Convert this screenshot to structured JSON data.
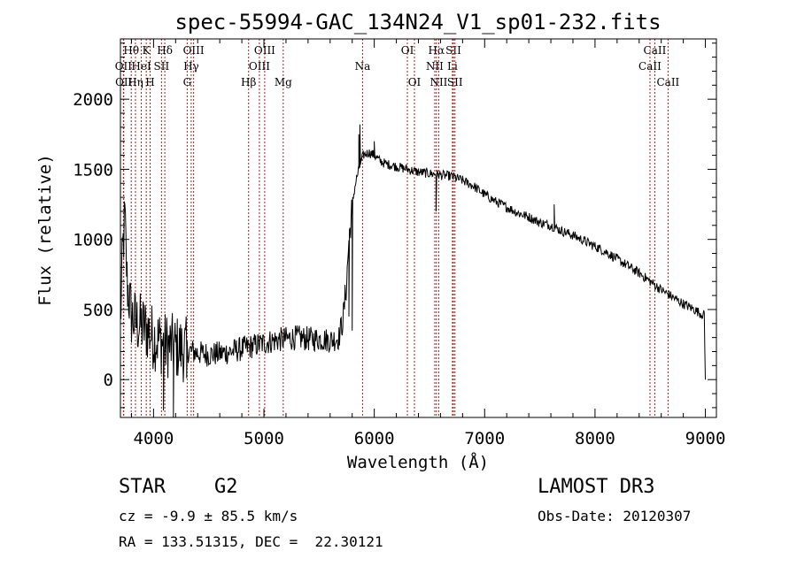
{
  "chart_data": {
    "type": "line",
    "title": "spec-55994-GAC_134N24_V1_sp01-232.fits",
    "xlabel": "Wavelength (Å)",
    "ylabel": "Flux (relative)",
    "xlim": [
      3700,
      9100
    ],
    "ylim": [
      -270,
      2430
    ],
    "xticks": [
      4000,
      5000,
      6000,
      7000,
      8000,
      9000
    ],
    "yticks": [
      0,
      500,
      1000,
      1500,
      2000
    ],
    "spectrum_anchors": [
      [
        3700,
        400
      ],
      [
        3720,
        900
      ],
      [
        3740,
        1150
      ],
      [
        3760,
        700
      ],
      [
        3800,
        450
      ],
      [
        3850,
        400
      ],
      [
        3900,
        380
      ],
      [
        3950,
        350
      ],
      [
        4000,
        300
      ],
      [
        4050,
        280
      ],
      [
        4100,
        250
      ],
      [
        4150,
        240
      ],
      [
        4200,
        230
      ],
      [
        4300,
        210
      ],
      [
        4400,
        190
      ],
      [
        4500,
        180
      ],
      [
        4600,
        185
      ],
      [
        4700,
        200
      ],
      [
        4800,
        220
      ],
      [
        4900,
        240
      ],
      [
        5000,
        260
      ],
      [
        5100,
        280
      ],
      [
        5200,
        290
      ],
      [
        5300,
        300
      ],
      [
        5400,
        290
      ],
      [
        5500,
        290
      ],
      [
        5600,
        280
      ],
      [
        5680,
        300
      ],
      [
        5720,
        450
      ],
      [
        5750,
        700
      ],
      [
        5770,
        1000
      ],
      [
        5790,
        1150
      ],
      [
        5800,
        1250
      ],
      [
        5830,
        1400
      ],
      [
        5860,
        1500
      ],
      [
        5900,
        1600
      ],
      [
        5950,
        1620
      ],
      [
        6000,
        1600
      ],
      [
        6050,
        1560
      ],
      [
        6100,
        1540
      ],
      [
        6200,
        1520
      ],
      [
        6300,
        1500
      ],
      [
        6400,
        1480
      ],
      [
        6500,
        1470
      ],
      [
        6600,
        1460
      ],
      [
        6700,
        1450
      ],
      [
        6800,
        1420
      ],
      [
        6900,
        1380
      ],
      [
        7000,
        1320
      ],
      [
        7100,
        1270
      ],
      [
        7200,
        1230
      ],
      [
        7300,
        1190
      ],
      [
        7400,
        1160
      ],
      [
        7500,
        1120
      ],
      [
        7600,
        1100
      ],
      [
        7700,
        1060
      ],
      [
        7800,
        1030
      ],
      [
        7900,
        990
      ],
      [
        8000,
        950
      ],
      [
        8100,
        910
      ],
      [
        8200,
        860
      ],
      [
        8300,
        810
      ],
      [
        8400,
        760
      ],
      [
        8500,
        700
      ],
      [
        8600,
        640
      ],
      [
        8700,
        590
      ],
      [
        8800,
        540
      ],
      [
        8900,
        500
      ],
      [
        8960,
        470
      ],
      [
        8990,
        460
      ],
      [
        9000,
        0
      ]
    ],
    "spectrum_features": [
      [
        5860,
        1750
      ],
      [
        5870,
        1820
      ],
      [
        6000,
        1700
      ],
      [
        6560,
        1200
      ],
      [
        7630,
        1250
      ],
      [
        5770,
        450
      ],
      [
        5800,
        350
      ],
      [
        4180,
        -270
      ],
      [
        4090,
        -220
      ],
      [
        4300,
        10
      ]
    ],
    "spectral_lines": [
      {
        "label": "Hθ",
        "wavelength": 3798,
        "row": 1
      },
      {
        "label": "OII",
        "wavelength": 3727,
        "row": 2
      },
      {
        "label": "OII",
        "wavelength": 3730,
        "row": 3
      },
      {
        "label": "Hη",
        "wavelength": 3836,
        "row": 3
      },
      {
        "label": "K",
        "wavelength": 3934,
        "row": 1
      },
      {
        "label": "HeI",
        "wavelength": 3889,
        "row": 2
      },
      {
        "label": "SII",
        "wavelength": 4072,
        "row": 2
      },
      {
        "label": "H",
        "wavelength": 3969,
        "row": 3
      },
      {
        "label": "Hδ",
        "wavelength": 4102,
        "row": 1
      },
      {
        "label": "OIII",
        "wavelength": 4363,
        "row": 1
      },
      {
        "label": "Hγ",
        "wavelength": 4341,
        "row": 2
      },
      {
        "label": "G",
        "wavelength": 4305,
        "row": 3
      },
      {
        "label": "Hβ",
        "wavelength": 4861,
        "row": 3
      },
      {
        "label": "OIII",
        "wavelength": 5007,
        "row": 1
      },
      {
        "label": "OIII",
        "wavelength": 4959,
        "row": 2
      },
      {
        "label": "Mg",
        "wavelength": 5175,
        "row": 3
      },
      {
        "label": "Na",
        "wavelength": 5894,
        "row": 2
      },
      {
        "label": "OI",
        "wavelength": 6300,
        "row": 1
      },
      {
        "label": "OI",
        "wavelength": 6364,
        "row": 3
      },
      {
        "label": "Hα",
        "wavelength": 6563,
        "row": 1
      },
      {
        "label": "NII",
        "wavelength": 6548,
        "row": 2
      },
      {
        "label": "NII",
        "wavelength": 6584,
        "row": 3
      },
      {
        "label": "SII",
        "wavelength": 6717,
        "row": 1
      },
      {
        "label": "Li",
        "wavelength": 6708,
        "row": 2
      },
      {
        "label": "SII",
        "wavelength": 6731,
        "row": 3
      },
      {
        "label": "CaII",
        "wavelength": 8542,
        "row": 1
      },
      {
        "label": "CaII",
        "wavelength": 8498,
        "row": 2
      },
      {
        "label": "CaII",
        "wavelength": 8662,
        "row": 3
      }
    ],
    "colors": {
      "spectrum": "#000000",
      "line_markers": "#aa2222",
      "axes": "#000000"
    }
  },
  "info": {
    "object_class": "STAR",
    "subclass": "G2",
    "survey": "LAMOST DR3",
    "redshift": "cz = -9.9 ± 85.5 km/s",
    "obs_date": "Obs-Date: 20120307",
    "coords": "RA = 133.51315, DEC =  22.30121"
  }
}
